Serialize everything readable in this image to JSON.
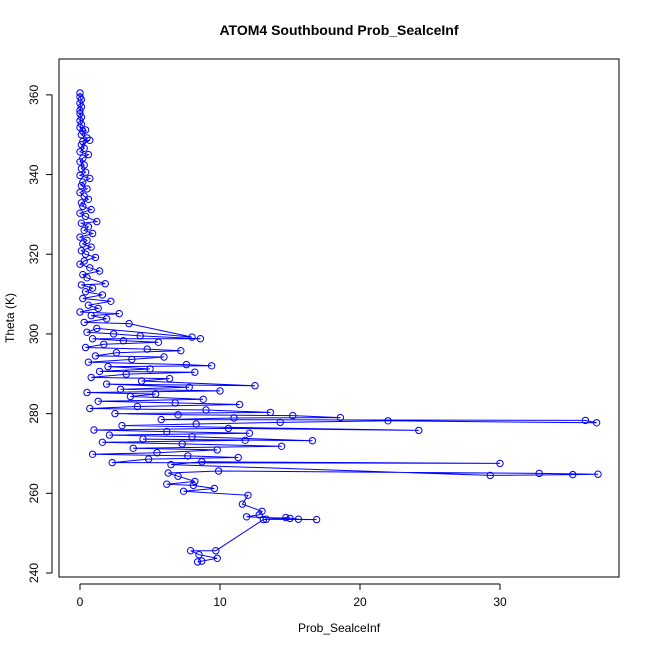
{
  "chart_data": {
    "type": "scatter",
    "title": "ATOM4 Southbound Prob_SealceInf",
    "xlabel": "Prob_SealceInf",
    "ylabel": "Theta (K)",
    "xlim": [
      -1.5,
      38.5
    ],
    "ylim": [
      239,
      369
    ],
    "x_ticks": [
      0,
      10,
      20,
      30
    ],
    "y_ticks": [
      240,
      260,
      280,
      300,
      320,
      340,
      360
    ],
    "marker": "open-circle",
    "connected": true,
    "grid": false,
    "legend": "none",
    "color": "#0000ff",
    "points": [
      [
        0.0,
        360.5
      ],
      [
        0.0,
        359.5
      ],
      [
        0.1,
        358.8
      ],
      [
        0.0,
        357.9
      ],
      [
        0.1,
        357.0
      ],
      [
        0.0,
        356.1
      ],
      [
        0.0,
        355.3
      ],
      [
        0.1,
        354.4
      ],
      [
        0.0,
        353.5
      ],
      [
        0.1,
        352.6
      ],
      [
        0.0,
        351.8
      ],
      [
        0.2,
        350.9
      ],
      [
        0.4,
        351.2
      ],
      [
        0.1,
        350.0
      ],
      [
        0.5,
        349.2
      ],
      [
        0.2,
        348.3
      ],
      [
        0.7,
        348.6
      ],
      [
        0.1,
        347.5
      ],
      [
        0.3,
        346.6
      ],
      [
        0.0,
        345.7
      ],
      [
        0.6,
        345.0
      ],
      [
        0.2,
        344.1
      ],
      [
        0.0,
        343.2
      ],
      [
        0.3,
        342.4
      ],
      [
        0.1,
        341.5
      ],
      [
        0.4,
        340.6
      ],
      [
        0.0,
        339.8
      ],
      [
        0.7,
        339.0
      ],
      [
        0.2,
        338.1
      ],
      [
        0.1,
        337.2
      ],
      [
        0.5,
        336.4
      ],
      [
        0.0,
        335.5
      ],
      [
        0.3,
        334.6
      ],
      [
        0.6,
        333.8
      ],
      [
        0.1,
        332.9
      ],
      [
        0.2,
        332.0
      ],
      [
        0.8,
        331.2
      ],
      [
        0.0,
        330.3
      ],
      [
        0.4,
        329.5
      ],
      [
        1.2,
        328.2
      ],
      [
        0.1,
        327.8
      ],
      [
        0.6,
        326.9
      ],
      [
        0.3,
        326.0
      ],
      [
        0.9,
        325.2
      ],
      [
        0.0,
        324.3
      ],
      [
        0.5,
        323.5
      ],
      [
        0.2,
        322.6
      ],
      [
        0.8,
        321.8
      ],
      [
        0.1,
        320.9
      ],
      [
        0.4,
        320.0
      ],
      [
        1.1,
        319.2
      ],
      [
        0.3,
        318.3
      ],
      [
        0.0,
        317.5
      ],
      [
        0.7,
        316.6
      ],
      [
        1.4,
        315.8
      ],
      [
        0.2,
        314.9
      ],
      [
        0.5,
        314.1
      ],
      [
        1.8,
        312.6
      ],
      [
        0.1,
        312.3
      ],
      [
        0.9,
        311.5
      ],
      [
        0.4,
        310.6
      ],
      [
        1.6,
        309.8
      ],
      [
        0.2,
        308.9
      ],
      [
        2.2,
        308.2
      ],
      [
        0.6,
        307.2
      ],
      [
        1.3,
        306.4
      ],
      [
        0.0,
        305.5
      ],
      [
        2.8,
        305.1
      ],
      [
        0.8,
        304.6
      ],
      [
        1.9,
        303.8
      ],
      [
        0.3,
        302.9
      ],
      [
        3.5,
        302.6
      ],
      [
        8.0,
        299.2
      ],
      [
        1.2,
        301.4
      ],
      [
        0.5,
        300.4
      ],
      [
        2.4,
        300.0
      ],
      [
        4.3,
        299.5
      ],
      [
        8.6,
        298.8
      ],
      [
        0.9,
        298.8
      ],
      [
        3.1,
        298.3
      ],
      [
        5.6,
        297.9
      ],
      [
        1.7,
        297.4
      ],
      [
        0.4,
        296.6
      ],
      [
        4.8,
        296.2
      ],
      [
        7.2,
        295.8
      ],
      [
        2.6,
        295.3
      ],
      [
        1.1,
        294.5
      ],
      [
        6.0,
        294.2
      ],
      [
        3.7,
        293.6
      ],
      [
        0.6,
        292.9
      ],
      [
        7.6,
        292.3
      ],
      [
        9.4,
        292.0
      ],
      [
        2.0,
        291.8
      ],
      [
        5.0,
        291.2
      ],
      [
        1.4,
        290.6
      ],
      [
        8.2,
        290.4
      ],
      [
        3.3,
        289.9
      ],
      [
        0.8,
        289.1
      ],
      [
        6.4,
        288.8
      ],
      [
        4.4,
        288.2
      ],
      [
        12.5,
        287.0
      ],
      [
        1.9,
        287.4
      ],
      [
        7.8,
        286.6
      ],
      [
        2.9,
        286.1
      ],
      [
        10.0,
        285.7
      ],
      [
        0.5,
        285.3
      ],
      [
        5.4,
        284.9
      ],
      [
        3.6,
        284.3
      ],
      [
        8.8,
        283.6
      ],
      [
        1.3,
        283.1
      ],
      [
        6.8,
        282.7
      ],
      [
        11.4,
        282.3
      ],
      [
        4.1,
        281.8
      ],
      [
        0.7,
        281.3
      ],
      [
        9.0,
        280.9
      ],
      [
        13.6,
        280.3
      ],
      [
        2.5,
        280.0
      ],
      [
        7.0,
        279.7
      ],
      [
        15.2,
        279.5
      ],
      [
        18.6,
        279.0
      ],
      [
        11.0,
        278.9
      ],
      [
        5.8,
        278.5
      ],
      [
        36.1,
        278.3
      ],
      [
        36.9,
        277.7
      ],
      [
        22.0,
        278.2
      ],
      [
        14.3,
        277.8
      ],
      [
        8.3,
        277.4
      ],
      [
        3.0,
        277.0
      ],
      [
        24.2,
        275.8
      ],
      [
        10.6,
        276.3
      ],
      [
        1.0,
        275.9
      ],
      [
        6.2,
        275.5
      ],
      [
        12.1,
        275.1
      ],
      [
        2.1,
        274.6
      ],
      [
        8.0,
        274.2
      ],
      [
        16.6,
        273.2
      ],
      [
        4.5,
        273.6
      ],
      [
        11.8,
        273.3
      ],
      [
        1.6,
        272.8
      ],
      [
        7.3,
        272.4
      ],
      [
        14.4,
        271.8
      ],
      [
        3.8,
        271.3
      ],
      [
        9.8,
        270.9
      ],
      [
        5.5,
        270.2
      ],
      [
        0.9,
        269.8
      ],
      [
        7.7,
        269.4
      ],
      [
        11.3,
        269.0
      ],
      [
        4.9,
        268.6
      ],
      [
        2.3,
        267.7
      ],
      [
        30.0,
        267.5
      ],
      [
        8.7,
        267.9
      ],
      [
        6.5,
        267.2
      ],
      [
        29.3,
        264.5
      ],
      [
        35.2,
        264.7
      ],
      [
        37.0,
        264.8
      ],
      [
        32.8,
        265.0
      ],
      [
        9.9,
        265.6
      ],
      [
        6.3,
        265.1
      ],
      [
        7.0,
        264.3
      ],
      [
        8.2,
        263.0
      ],
      [
        6.2,
        262.3
      ],
      [
        8.1,
        262.0
      ],
      [
        9.6,
        261.2
      ],
      [
        7.4,
        260.5
      ],
      [
        12.0,
        259.5
      ],
      [
        11.6,
        257.3
      ],
      [
        13.0,
        255.5
      ],
      [
        12.8,
        254.6
      ],
      [
        11.9,
        254.1
      ],
      [
        15.0,
        253.7
      ],
      [
        13.3,
        253.5
      ],
      [
        16.9,
        253.4
      ],
      [
        15.6,
        253.5
      ],
      [
        14.7,
        253.9
      ],
      [
        13.1,
        253.4
      ],
      [
        9.7,
        245.6
      ],
      [
        7.9,
        245.6
      ],
      [
        8.5,
        244.6
      ],
      [
        9.8,
        243.7
      ],
      [
        8.7,
        243.0
      ],
      [
        8.4,
        242.8
      ]
    ]
  }
}
